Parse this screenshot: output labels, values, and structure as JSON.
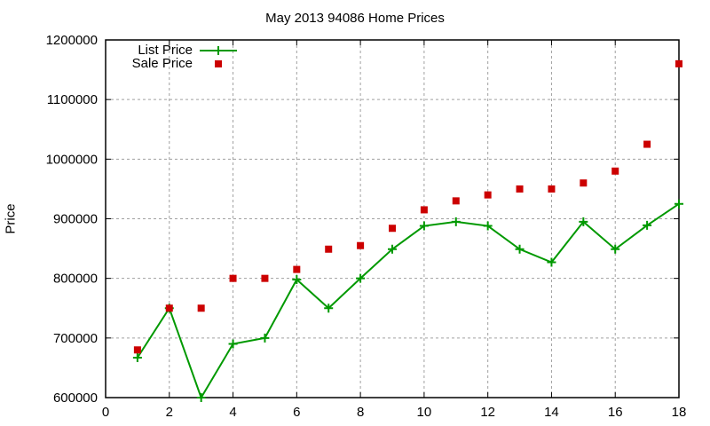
{
  "chart_data": {
    "type": "line",
    "title": "May 2013 94086 Home Prices",
    "xlabel": "",
    "ylabel": "Price",
    "xlim": [
      0,
      18
    ],
    "ylim": [
      600000,
      1200000
    ],
    "x_ticks": [
      0,
      2,
      4,
      6,
      8,
      10,
      12,
      14,
      16,
      18
    ],
    "y_ticks": [
      600000,
      700000,
      800000,
      900000,
      1000000,
      1100000,
      1200000
    ],
    "y_tick_labels": [
      "600000",
      "700000",
      "800000",
      "900000",
      "1000000",
      "1100000",
      "1200000"
    ],
    "grid": true,
    "legend_position": "top-left",
    "x": [
      1,
      2,
      3,
      4,
      5,
      6,
      7,
      8,
      9,
      10,
      11,
      12,
      13,
      14,
      15,
      16,
      17,
      18
    ],
    "series": [
      {
        "name": "List Price",
        "style": "linespoints",
        "marker": "plus",
        "color": "#009900",
        "values": [
          667000,
          750000,
          600000,
          690000,
          700000,
          798000,
          750000,
          800000,
          849000,
          888000,
          895000,
          888000,
          849000,
          827000,
          895000,
          849000,
          889000,
          925000
        ]
      },
      {
        "name": "Sale Price",
        "style": "points",
        "marker": "square",
        "color": "#cc0000",
        "values": [
          680000,
          750000,
          750000,
          800000,
          800000,
          815000,
          849000,
          855000,
          884000,
          915000,
          930000,
          940000,
          950000,
          950000,
          960000,
          980000,
          1025000,
          1160000
        ]
      }
    ]
  }
}
